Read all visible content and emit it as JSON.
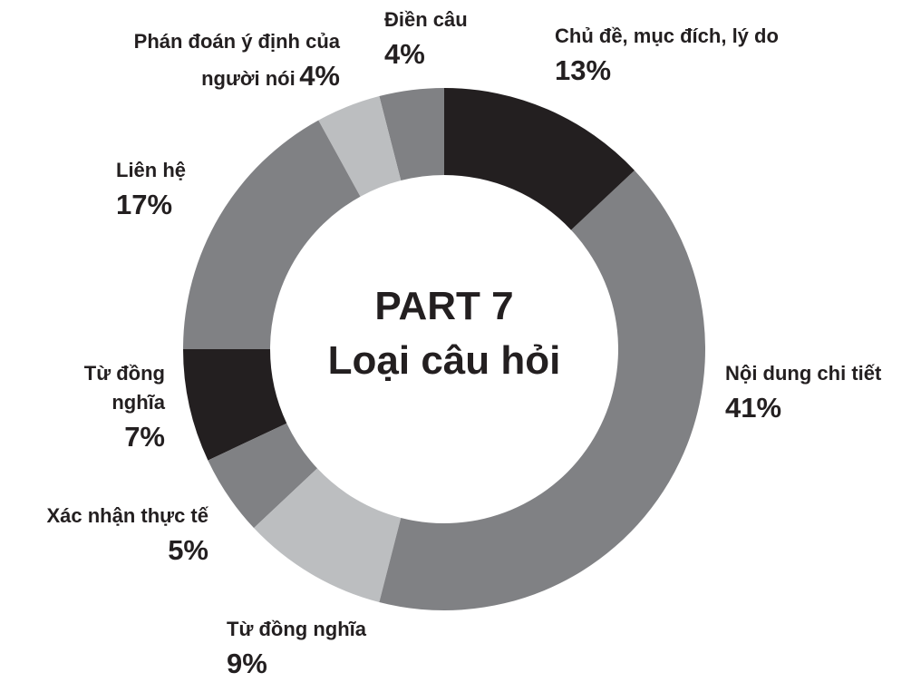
{
  "chart_data": {
    "type": "donut",
    "title": "PART 7",
    "subtitle": "Loại câu hỏi",
    "categories": [
      "Chủ đề, mục đích, lý do",
      "Nội dung chi tiết",
      "Từ đồng nghĩa",
      "Xác nhận thực tế",
      "Từ đồng nghĩa",
      "Liên hệ",
      "Phán đoán ý định của người nói",
      "Điền câu"
    ],
    "values": [
      13,
      41,
      9,
      5,
      7,
      17,
      4,
      4
    ],
    "value_labels": [
      "13%",
      "41%",
      "9%",
      "5%",
      "7%",
      "17%",
      "4%",
      "4%"
    ],
    "colors": [
      "#231f20",
      "#808184",
      "#bcbec0",
      "#808184",
      "#231f20",
      "#808184",
      "#bcbec0",
      "#808184"
    ]
  }
}
